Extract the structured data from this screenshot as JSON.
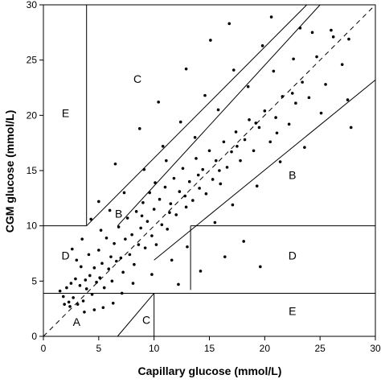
{
  "chart_data": {
    "type": "scatter",
    "title": "",
    "xlabel": "Capillary glucose (mmol/L)",
    "ylabel": "CGM glucose (mmol/L)",
    "xlim": [
      0,
      30
    ],
    "ylim": [
      0,
      30
    ],
    "xticks": [
      "0",
      "5",
      "10",
      "15",
      "20",
      "25",
      "30"
    ],
    "yticks": [
      "0",
      "5",
      "10",
      "15",
      "20",
      "25",
      "30"
    ],
    "grid": false,
    "legend": "none",
    "point_color": "#000000",
    "line_color": "#000000",
    "identity_line": {
      "style": "dashed",
      "from": [
        0,
        0
      ],
      "to": [
        30,
        30
      ]
    },
    "zone_boundaries": [
      {
        "from": [
          3.9,
          10
        ],
        "to": [
          3.9,
          30
        ]
      },
      {
        "from": [
          0,
          3.9
        ],
        "to": [
          30,
          3.9
        ]
      },
      {
        "from": [
          0,
          10
        ],
        "to": [
          3.9,
          10
        ]
      },
      {
        "from": [
          13.3,
          10
        ],
        "to": [
          30,
          10
        ]
      },
      {
        "from": [
          13.3,
          4.2
        ],
        "to": [
          13.3,
          10
        ]
      },
      {
        "from": [
          10,
          0
        ],
        "to": [
          10,
          3.9
        ]
      },
      {
        "from": [
          3.9,
          10
        ],
        "to": [
          23.8,
          30
        ]
      },
      {
        "from": [
          6.7,
          10
        ],
        "to": [
          25,
          30
        ]
      },
      {
        "from": [
          6.7,
          0
        ],
        "to": [
          10,
          3.9
        ]
      },
      {
        "from": [
          10,
          6.9
        ],
        "to": [
          30,
          23.2
        ]
      }
    ],
    "zone_labels": [
      {
        "text": "A",
        "x": 3,
        "y": 1.3
      },
      {
        "text": "B",
        "x": 22.5,
        "y": 14.6
      },
      {
        "text": "B",
        "x": 6.8,
        "y": 11.1
      },
      {
        "text": "C",
        "x": 8.5,
        "y": 23.3
      },
      {
        "text": "C",
        "x": 9.3,
        "y": 1.5
      },
      {
        "text": "D",
        "x": 2,
        "y": 7.3
      },
      {
        "text": "D",
        "x": 22.5,
        "y": 7.3
      },
      {
        "text": "E",
        "x": 2,
        "y": 20.2
      },
      {
        "text": "E",
        "x": 22.5,
        "y": 2.3
      }
    ],
    "points": [
      [
        1.5,
        4.1
      ],
      [
        1.8,
        3.6
      ],
      [
        2.1,
        4.4
      ],
      [
        2.3,
        3.1
      ],
      [
        2.5,
        4.8
      ],
      [
        2.7,
        3.5
      ],
      [
        2.9,
        5.2
      ],
      [
        3.1,
        2.9
      ],
      [
        3.3,
        4.6
      ],
      [
        3.4,
        6.3
      ],
      [
        3.6,
        3.2
      ],
      [
        3.8,
        5.1
      ],
      [
        3.9,
        4.3
      ],
      [
        4.1,
        7.4
      ],
      [
        4.2,
        5.5
      ],
      [
        4.4,
        3.8
      ],
      [
        4.6,
        6.2
      ],
      [
        4.8,
        4.9
      ],
      [
        5.0,
        7.8
      ],
      [
        5.1,
        5.3
      ],
      [
        5.3,
        6.6
      ],
      [
        5.5,
        4.4
      ],
      [
        5.7,
        8.9
      ],
      [
        5.9,
        6.1
      ],
      [
        6.1,
        7.2
      ],
      [
        6.2,
        5.0
      ],
      [
        6.4,
        8.4
      ],
      [
        6.6,
        6.8
      ],
      [
        6.8,
        9.9
      ],
      [
        7.0,
        7.1
      ],
      [
        7.2,
        5.8
      ],
      [
        7.4,
        8.8
      ],
      [
        7.6,
        10.7
      ],
      [
        7.8,
        7.4
      ],
      [
        8.0,
        9.2
      ],
      [
        8.2,
        6.5
      ],
      [
        8.4,
        11.3
      ],
      [
        8.6,
        8.3
      ],
      [
        8.8,
        9.8
      ],
      [
        9.0,
        12.1
      ],
      [
        9.2,
        8.0
      ],
      [
        9.4,
        10.4
      ],
      [
        9.6,
        13.0
      ],
      [
        9.8,
        9.1
      ],
      [
        10.0,
        11.5
      ],
      [
        10.2,
        8.3
      ],
      [
        10.5,
        12.4
      ],
      [
        10.7,
        10.1
      ],
      [
        11.0,
        13.5
      ],
      [
        11.2,
        9.7
      ],
      [
        11.5,
        12.0
      ],
      [
        11.8,
        14.3
      ],
      [
        12.0,
        11.0
      ],
      [
        12.3,
        13.1
      ],
      [
        12.6,
        15.2
      ],
      [
        12.9,
        11.7
      ],
      [
        13.2,
        14.0
      ],
      [
        13.5,
        12.3
      ],
      [
        13.8,
        16.1
      ],
      [
        14.1,
        13.4
      ],
      [
        14.4,
        15.1
      ],
      [
        14.7,
        12.9
      ],
      [
        15.0,
        16.8
      ],
      [
        15.3,
        14.2
      ],
      [
        15.6,
        15.9
      ],
      [
        16.0,
        13.8
      ],
      [
        16.3,
        17.6
      ],
      [
        16.6,
        15.3
      ],
      [
        17.0,
        16.7
      ],
      [
        17.4,
        18.5
      ],
      [
        17.8,
        15.9
      ],
      [
        18.2,
        17.8
      ],
      [
        18.6,
        19.6
      ],
      [
        19.0,
        16.8
      ],
      [
        19.5,
        18.9
      ],
      [
        20.0,
        20.4
      ],
      [
        20.5,
        17.6
      ],
      [
        21.0,
        19.8
      ],
      [
        21.6,
        21.7
      ],
      [
        22.2,
        19.2
      ],
      [
        22.8,
        21.1
      ],
      [
        23.4,
        23.0
      ],
      [
        24.0,
        21.6
      ],
      [
        24.7,
        25.3
      ],
      [
        25.5,
        22.8
      ],
      [
        26.2,
        27.1
      ],
      [
        27.0,
        24.6
      ],
      [
        27.6,
        26.9
      ],
      [
        27.8,
        18.9
      ],
      [
        27.5,
        21.4
      ],
      [
        26.0,
        27.7
      ],
      [
        24.3,
        27.5
      ],
      [
        23.2,
        27.9
      ],
      [
        19.8,
        26.3
      ],
      [
        17.2,
        24.1
      ],
      [
        14.6,
        21.8
      ],
      [
        12.4,
        19.4
      ],
      [
        10.8,
        17.2
      ],
      [
        9.1,
        15.1
      ],
      [
        7.3,
        13.0
      ],
      [
        6.0,
        11.4
      ],
      [
        5.2,
        9.6
      ],
      [
        11.6,
        6.9
      ],
      [
        13.0,
        8.1
      ],
      [
        15.5,
        10.3
      ],
      [
        17.1,
        11.9
      ],
      [
        19.3,
        13.6
      ],
      [
        21.4,
        15.8
      ],
      [
        23.6,
        17.1
      ],
      [
        25.1,
        20.2
      ],
      [
        16.4,
        7.2
      ],
      [
        18.1,
        8.6
      ],
      [
        19.6,
        6.3
      ],
      [
        14.2,
        5.9
      ],
      [
        12.2,
        4.7
      ],
      [
        9.8,
        5.6
      ],
      [
        8.1,
        4.8
      ],
      [
        7.1,
        3.9
      ],
      [
        6.3,
        3.0
      ],
      [
        5.4,
        2.6
      ],
      [
        4.6,
        2.4
      ],
      [
        3.7,
        2.2
      ],
      [
        2.4,
        2.7
      ],
      [
        1.9,
        2.9
      ],
      [
        3.0,
        6.9
      ],
      [
        2.6,
        7.9
      ],
      [
        3.5,
        8.8
      ],
      [
        4.3,
        10.6
      ],
      [
        5.0,
        12.2
      ],
      [
        6.5,
        15.6
      ],
      [
        8.7,
        18.8
      ],
      [
        10.4,
        21.2
      ],
      [
        12.9,
        24.2
      ],
      [
        15.1,
        26.8
      ],
      [
        16.8,
        28.3
      ],
      [
        20.6,
        28.9
      ],
      [
        22.6,
        25.1
      ],
      [
        11.1,
        15.9
      ],
      [
        13.7,
        18.0
      ],
      [
        15.8,
        20.5
      ],
      [
        18.5,
        22.6
      ],
      [
        20.8,
        24.0
      ],
      [
        8.9,
        10.9
      ],
      [
        10.1,
        13.9
      ],
      [
        11.4,
        11.2
      ],
      [
        12.8,
        12.7
      ],
      [
        14.0,
        14.6
      ],
      [
        15.9,
        15.0
      ],
      [
        17.5,
        17.2
      ],
      [
        19.2,
        19.3
      ],
      [
        21.1,
        18.4
      ],
      [
        22.5,
        22.0
      ]
    ]
  }
}
